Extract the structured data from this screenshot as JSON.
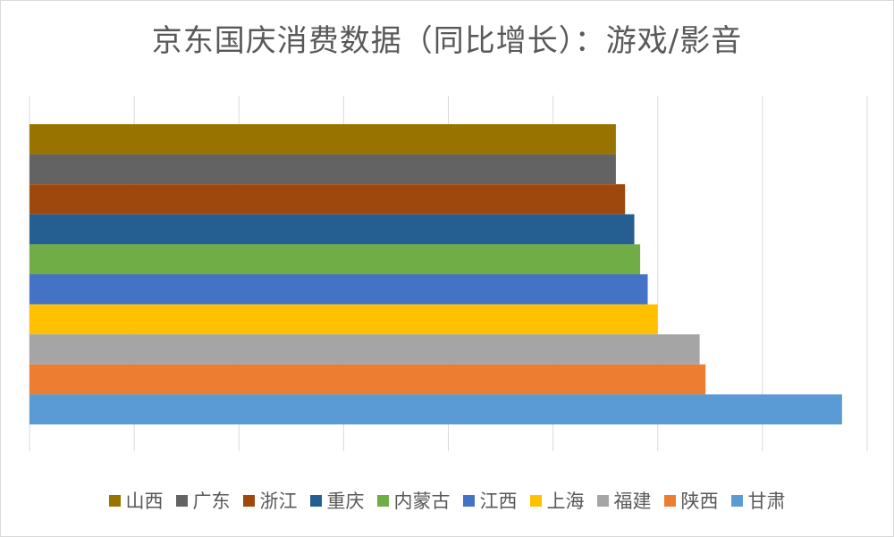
{
  "chart_data": {
    "type": "bar",
    "orientation": "horizontal",
    "title": "京东国庆消费数据（同比增长）：游戏/影音",
    "xlabel": "",
    "ylabel": "",
    "xlim": [
      0,
      100
    ],
    "grid": true,
    "legend_position": "bottom",
    "series": [
      {
        "name": "山西",
        "value": 70.0,
        "color": "#997300"
      },
      {
        "name": "广东",
        "value": 70.0,
        "color": "#636363"
      },
      {
        "name": "浙江",
        "value": 71.1,
        "color": "#9E480E"
      },
      {
        "name": "重庆",
        "value": 72.2,
        "color": "#255E91"
      },
      {
        "name": "内蒙古",
        "value": 72.9,
        "color": "#70AD47"
      },
      {
        "name": "江西",
        "value": 73.8,
        "color": "#4472C4"
      },
      {
        "name": "上海",
        "value": 75.0,
        "color": "#FFC000"
      },
      {
        "name": "福建",
        "value": 80.0,
        "color": "#A5A5A5"
      },
      {
        "name": "陕西",
        "value": 80.7,
        "color": "#ED7D31"
      },
      {
        "name": "甘肃",
        "value": 97.0,
        "color": "#5B9BD5"
      }
    ]
  }
}
